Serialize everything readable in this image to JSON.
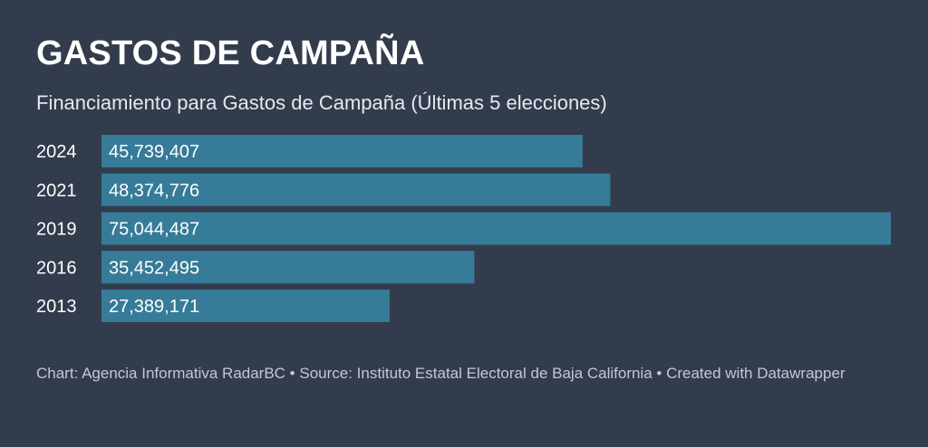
{
  "header": {
    "title": "GASTOS DE CAMPAÑA",
    "subtitle": "Financiamiento para Gastos de Campaña (Últimas 5 elecciones)"
  },
  "colors": {
    "background": "#333c4c",
    "bar": "#367b98",
    "label": "#ffffff"
  },
  "chart_data": {
    "type": "bar",
    "orientation": "horizontal",
    "title": "GASTOS DE CAMPAÑA",
    "subtitle": "Financiamiento para Gastos de Campaña (Últimas 5 elecciones)",
    "categories": [
      "2024",
      "2021",
      "2019",
      "2016",
      "2013"
    ],
    "values": [
      45739407,
      48374776,
      75044487,
      35452495,
      27389171
    ],
    "value_labels": [
      "45,739,407",
      "48,374,776",
      "75,044,487",
      "35,452,495",
      "27,389,171"
    ],
    "xlim": [
      0,
      75044487
    ],
    "grid": false,
    "legend": "none"
  },
  "footer": {
    "notes": "Chart: Agencia Informativa RadarBC • Source: Instituto Estatal Electoral de Baja California • Created with Datawrapper"
  }
}
